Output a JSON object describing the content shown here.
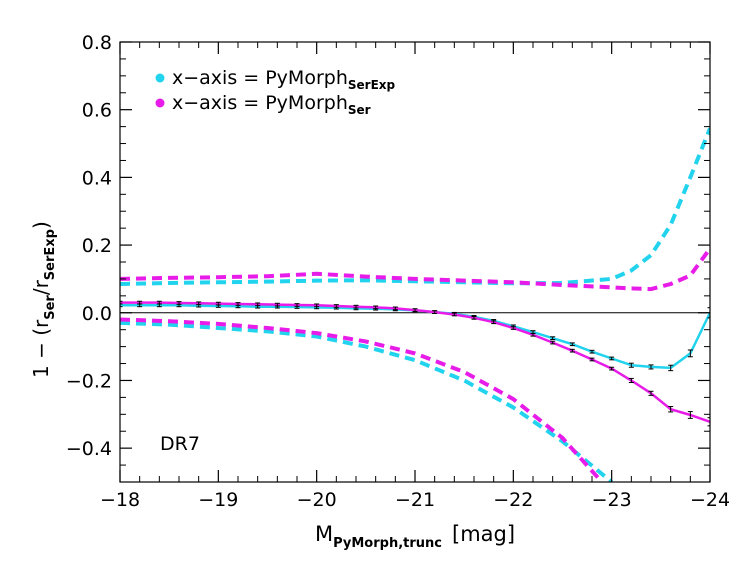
{
  "chart_data": {
    "type": "line",
    "xlabel": {
      "main": "M",
      "sub": "PyMorph,trunc",
      "unit": "[mag]"
    },
    "ylabel": {
      "prefix": "1 − (r",
      "sub1": "Ser",
      "mid": "/r",
      "sub2": "SerExp",
      "suffix": ")"
    },
    "xlim": [
      -18,
      -24
    ],
    "ylim": [
      -0.5,
      0.8
    ],
    "xticks": [
      -18,
      -19,
      -20,
      -21,
      -22,
      -23,
      -24
    ],
    "xtick_labels": [
      "−18",
      "−19",
      "−20",
      "−21",
      "−22",
      "−23",
      "−24"
    ],
    "yticks": [
      -0.4,
      -0.2,
      0.0,
      0.2,
      0.4,
      0.6,
      0.8
    ],
    "ytick_labels": [
      "−0.4",
      "−0.2",
      "0.0",
      "0.2",
      "0.4",
      "0.6",
      "0.8"
    ],
    "zero_line": 0,
    "annotation": "DR7",
    "legend": [
      {
        "prefix": "x−axis = PyMorph",
        "sub": "SerExp",
        "color": "#22d3ee"
      },
      {
        "prefix": "x−axis = PyMorph",
        "sub": "Ser",
        "color": "#e81ce8"
      }
    ],
    "series": [
      {
        "id": "serexp_median",
        "color": "#22d3ee",
        "style": "solid",
        "errorbars": true,
        "x": [
          -18.0,
          -18.2,
          -18.4,
          -18.6,
          -18.8,
          -19.0,
          -19.2,
          -19.4,
          -19.6,
          -19.8,
          -20.0,
          -20.2,
          -20.4,
          -20.6,
          -20.8,
          -21.0,
          -21.2,
          -21.4,
          -21.6,
          -21.8,
          -22.0,
          -22.2,
          -22.4,
          -22.6,
          -22.8,
          -23.0,
          -23.2,
          -23.4,
          -23.6,
          -23.8,
          -24.0
        ],
        "y": [
          0.022,
          0.022,
          0.022,
          0.022,
          0.021,
          0.02,
          0.019,
          0.018,
          0.018,
          0.017,
          0.016,
          0.015,
          0.013,
          0.012,
          0.01,
          0.007,
          0.002,
          -0.003,
          -0.012,
          -0.024,
          -0.04,
          -0.057,
          -0.075,
          -0.093,
          -0.115,
          -0.135,
          -0.155,
          -0.16,
          -0.163,
          -0.12,
          0.0
        ],
        "err": [
          0.004,
          0.004,
          0.004,
          0.004,
          0.004,
          0.004,
          0.004,
          0.004,
          0.004,
          0.004,
          0.004,
          0.004,
          0.004,
          0.004,
          0.004,
          0.004,
          0.004,
          0.004,
          0.004,
          0.004,
          0.004,
          0.004,
          0.004,
          0.004,
          0.004,
          0.004,
          0.006,
          0.006,
          0.008,
          0.01,
          0.015
        ]
      },
      {
        "id": "ser_median",
        "color": "#e81ce8",
        "style": "solid",
        "errorbars": true,
        "x": [
          -18.0,
          -18.2,
          -18.4,
          -18.6,
          -18.8,
          -19.0,
          -19.2,
          -19.4,
          -19.6,
          -19.8,
          -20.0,
          -20.2,
          -20.4,
          -20.6,
          -20.8,
          -21.0,
          -21.2,
          -21.4,
          -21.6,
          -21.8,
          -22.0,
          -22.2,
          -22.4,
          -22.6,
          -22.8,
          -23.0,
          -23.2,
          -23.4,
          -23.6,
          -23.8,
          -24.0
        ],
        "y": [
          0.03,
          0.03,
          0.03,
          0.029,
          0.028,
          0.027,
          0.026,
          0.025,
          0.024,
          0.023,
          0.022,
          0.02,
          0.018,
          0.016,
          0.013,
          0.008,
          0.002,
          -0.005,
          -0.015,
          -0.028,
          -0.045,
          -0.065,
          -0.088,
          -0.112,
          -0.138,
          -0.165,
          -0.2,
          -0.238,
          -0.285,
          -0.302,
          -0.322
        ],
        "err": [
          0.004,
          0.004,
          0.004,
          0.004,
          0.004,
          0.004,
          0.004,
          0.004,
          0.004,
          0.004,
          0.004,
          0.004,
          0.004,
          0.004,
          0.004,
          0.004,
          0.004,
          0.004,
          0.004,
          0.004,
          0.004,
          0.004,
          0.004,
          0.004,
          0.004,
          0.004,
          0.006,
          0.006,
          0.008,
          0.01,
          0.012
        ]
      },
      {
        "id": "serexp_upper",
        "color": "#22d3ee",
        "style": "dashed",
        "x": [
          -18.0,
          -18.5,
          -19.0,
          -19.5,
          -20.0,
          -20.5,
          -21.0,
          -21.5,
          -22.0,
          -22.5,
          -23.0,
          -23.2,
          -23.4,
          -23.6,
          -23.8,
          -24.0
        ],
        "y": [
          0.085,
          0.088,
          0.09,
          0.092,
          0.095,
          0.096,
          0.093,
          0.09,
          0.087,
          0.088,
          0.1,
          0.125,
          0.17,
          0.26,
          0.4,
          0.545
        ]
      },
      {
        "id": "ser_upper",
        "color": "#e81ce8",
        "style": "dashed",
        "x": [
          -18.0,
          -18.5,
          -19.0,
          -19.5,
          -20.0,
          -20.5,
          -21.0,
          -21.5,
          -22.0,
          -22.5,
          -23.0,
          -23.2,
          -23.4,
          -23.6,
          -23.8,
          -24.0
        ],
        "y": [
          0.1,
          0.103,
          0.105,
          0.108,
          0.115,
          0.107,
          0.1,
          0.095,
          0.09,
          0.082,
          0.075,
          0.072,
          0.07,
          0.085,
          0.11,
          0.19
        ]
      },
      {
        "id": "serexp_lower",
        "color": "#22d3ee",
        "style": "dashed",
        "x": [
          -18.0,
          -18.5,
          -19.0,
          -19.5,
          -20.0,
          -20.5,
          -21.0,
          -21.5,
          -22.0,
          -22.5,
          -23.0
        ],
        "y": [
          -0.03,
          -0.035,
          -0.045,
          -0.055,
          -0.07,
          -0.1,
          -0.14,
          -0.2,
          -0.28,
          -0.38,
          -0.5
        ]
      },
      {
        "id": "ser_lower",
        "color": "#e81ce8",
        "style": "dashed",
        "x": [
          -18.0,
          -18.5,
          -19.0,
          -19.5,
          -20.0,
          -20.5,
          -21.0,
          -21.5,
          -22.0,
          -22.5,
          -22.9
        ],
        "y": [
          -0.02,
          -0.025,
          -0.033,
          -0.045,
          -0.06,
          -0.085,
          -0.12,
          -0.175,
          -0.255,
          -0.37,
          -0.5
        ]
      }
    ]
  }
}
